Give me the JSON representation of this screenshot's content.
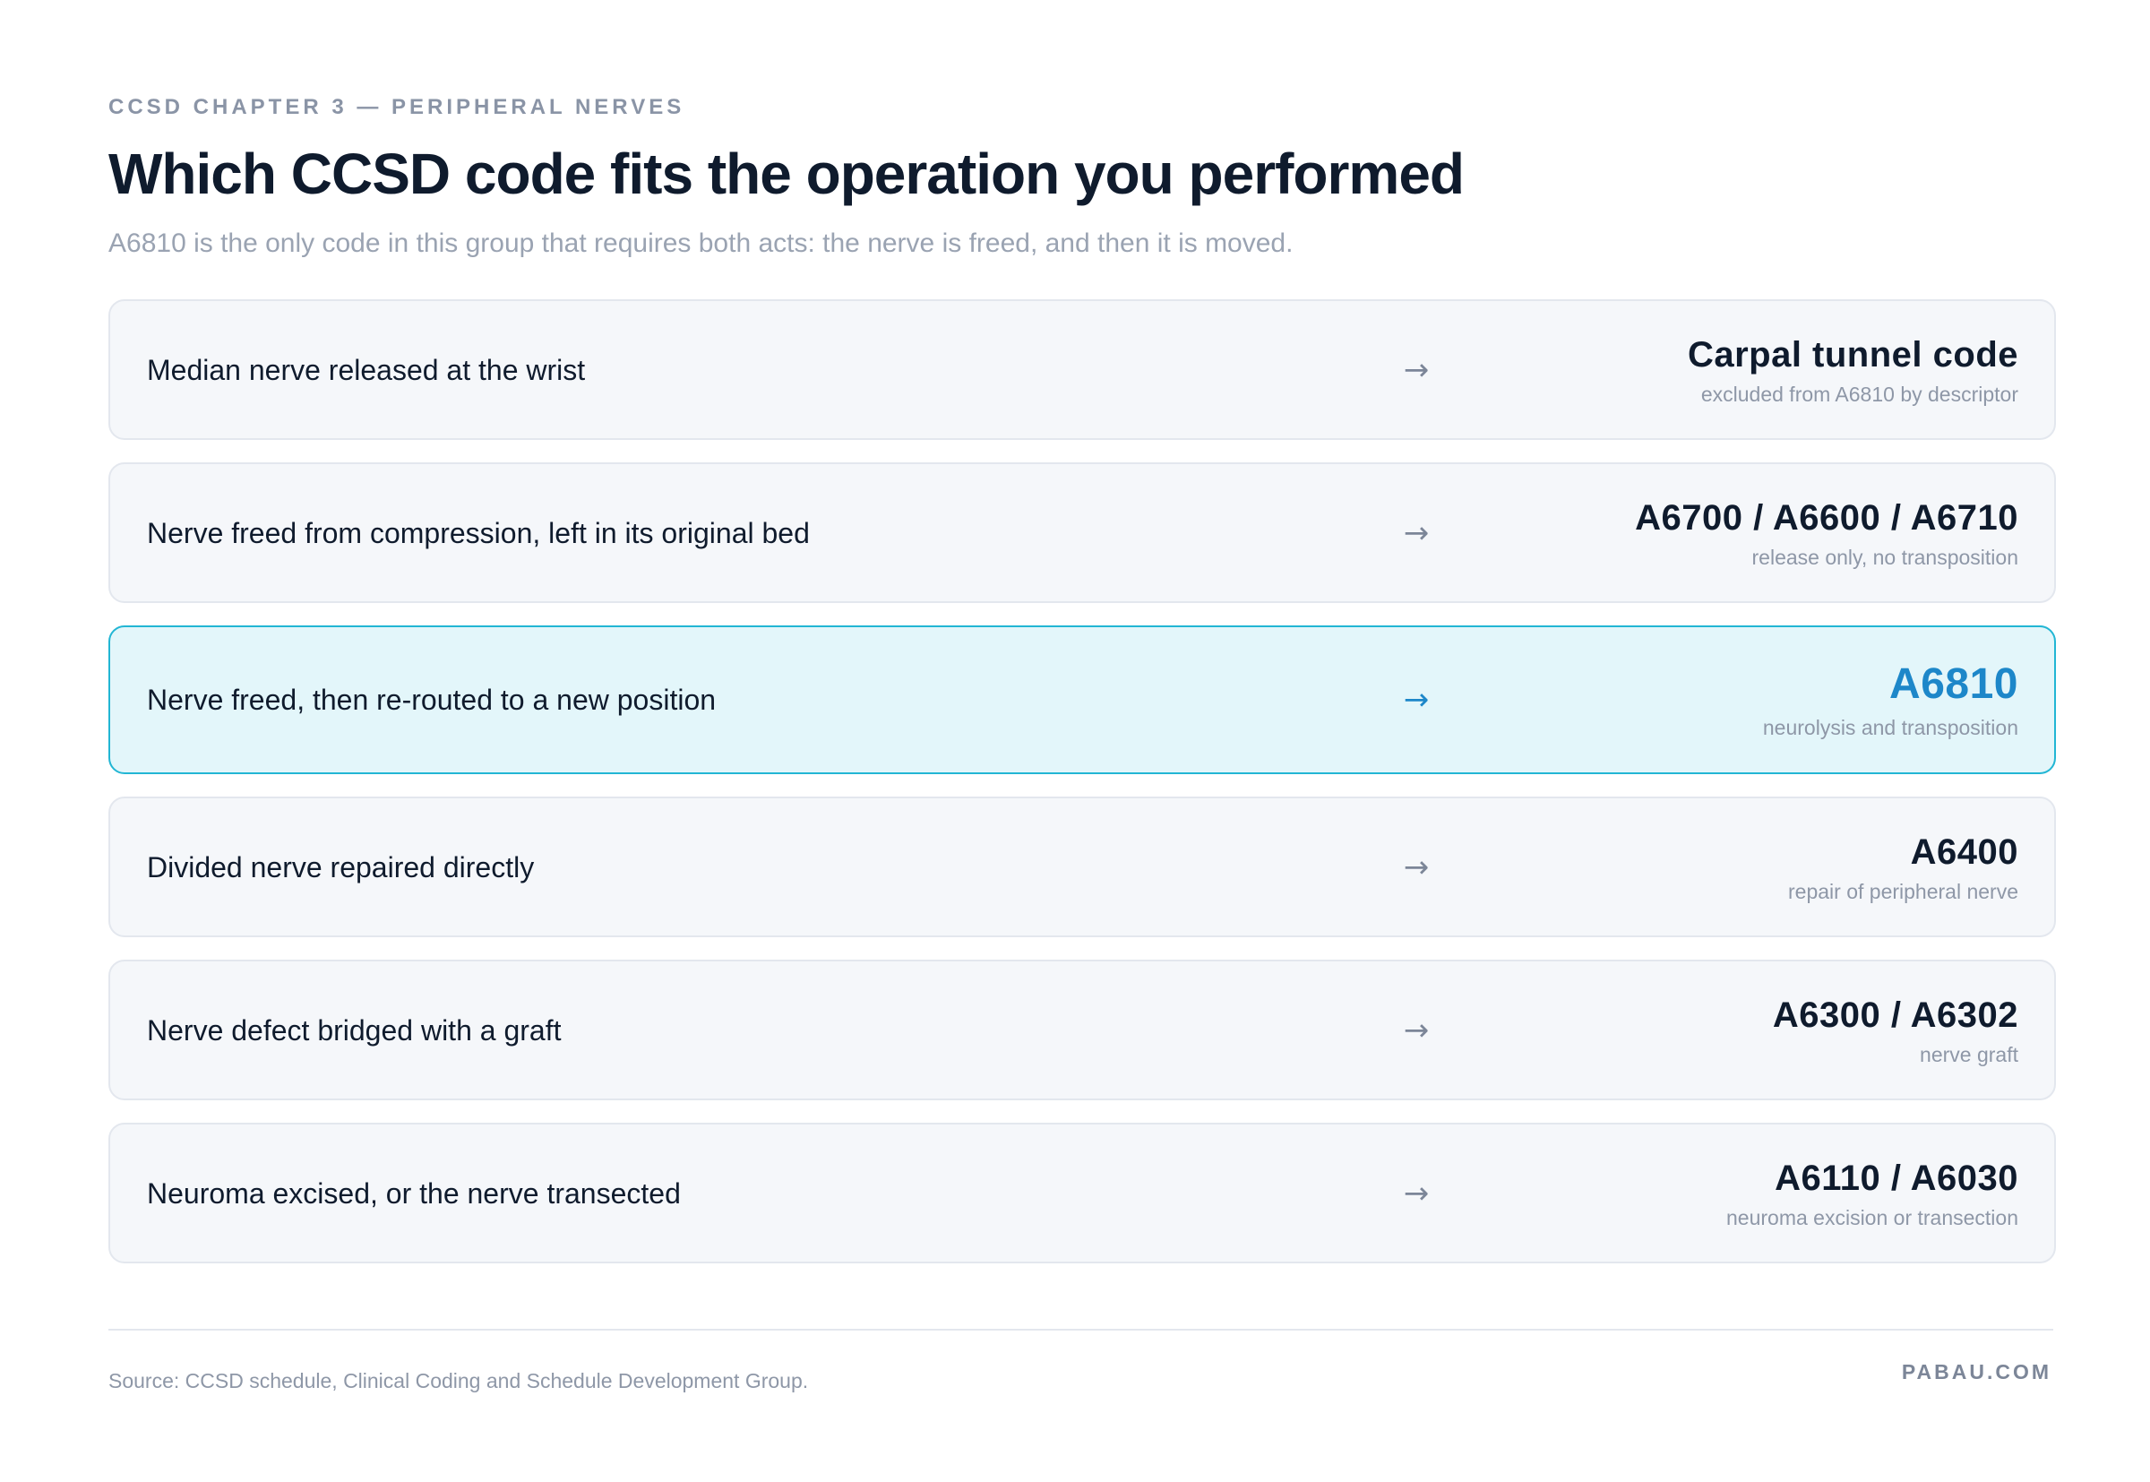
{
  "header": {
    "eyebrow": "CCSD CHAPTER 3 — PERIPHERAL NERVES",
    "title": "Which CCSD code fits the operation you performed",
    "subtitle": "A6810 is the only code in this group that requires both acts: the nerve is freed, and then it is moved."
  },
  "rows": [
    {
      "label": "Median nerve released at the wrist",
      "arrow": "→",
      "code": "Carpal tunnel code",
      "note": "excluded from A6810 by descriptor",
      "highlighted": false
    },
    {
      "label": "Nerve freed from compression, left in its original bed",
      "arrow": "→",
      "code": "A6700 / A6600 / A6710",
      "note": "release only, no transposition",
      "highlighted": false
    },
    {
      "label": "Nerve freed, then re-routed to a new position",
      "arrow": "→",
      "code": "A6810",
      "note": "neurolysis and transposition",
      "highlighted": true
    },
    {
      "label": "Divided nerve repaired directly",
      "arrow": "→",
      "code": "A6400",
      "note": "repair of peripheral nerve",
      "highlighted": false
    },
    {
      "label": "Nerve defect bridged with a graft",
      "arrow": "→",
      "code": "A6300 / A6302",
      "note": "nerve graft",
      "highlighted": false
    },
    {
      "label": "Neuroma excised, or the nerve transected",
      "arrow": "→",
      "code": "A6110 / A6030",
      "note": "neuroma excision or transection",
      "highlighted": false
    }
  ],
  "footer": {
    "source": "Source: CCSD schedule, Clinical Coding and Schedule Development Group.",
    "brand": "PABAU.COM"
  },
  "colors": {
    "accent": "#1d87c9",
    "highlight_bg": "#e3f6fa",
    "highlight_border": "#22b6d4",
    "row_bg": "#f5f7fa",
    "text_dark": "#0f1b2d",
    "text_muted": "#8e97a7"
  }
}
